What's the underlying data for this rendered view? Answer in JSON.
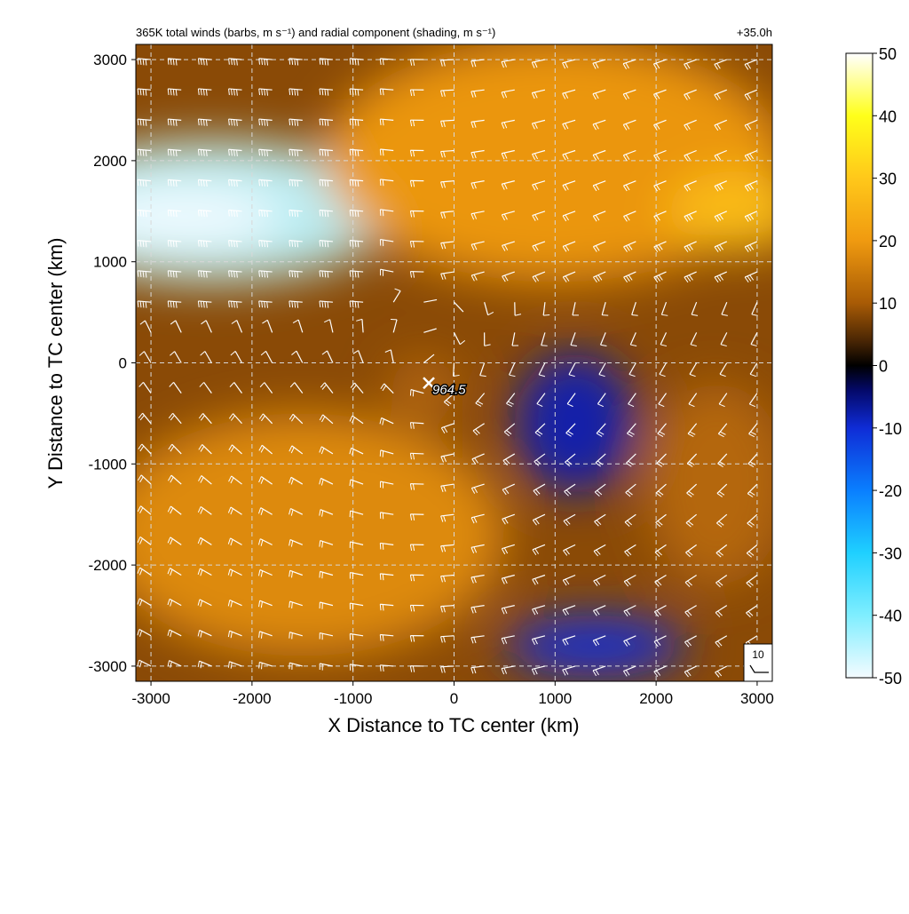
{
  "chart_data": {
    "type": "heatmap",
    "title": "365K total winds (barbs, m s⁻¹) and radial component (shading, m s⁻¹)",
    "forecast_hour": "+35.0h",
    "xlabel": "X Distance to TC center (km)",
    "ylabel": "Y Distance to TC center (km)",
    "xlim": [
      -3150,
      3150
    ],
    "ylim": [
      -3150,
      3150
    ],
    "x_ticks": [
      -3000,
      -2000,
      -1000,
      0,
      1000,
      2000,
      3000
    ],
    "y_ticks": [
      -3000,
      -2000,
      -1000,
      0,
      1000,
      2000,
      3000
    ],
    "grid": true,
    "grid_style": "dashed",
    "center_marker": {
      "x": -250,
      "y": -200,
      "label": "964.5"
    },
    "barb_reference": {
      "label": "10",
      "speed": 10,
      "placement": "bottom-right"
    },
    "colorbar": {
      "min": -50,
      "max": 50,
      "ticks": [
        50,
        40,
        30,
        20,
        10,
        0,
        -10,
        -20,
        -30,
        -40,
        -50
      ],
      "placement": "right",
      "stops": [
        {
          "value": -50,
          "color": "#f4fbff"
        },
        {
          "value": -40,
          "color": "#7feeff"
        },
        {
          "value": -30,
          "color": "#1fd0ff"
        },
        {
          "value": -20,
          "color": "#0a7fff"
        },
        {
          "value": -10,
          "color": "#0f2cd6"
        },
        {
          "value": -4,
          "color": "#04096a"
        },
        {
          "value": 0,
          "color": "#000000"
        },
        {
          "value": 4,
          "color": "#4a2604"
        },
        {
          "value": 10,
          "color": "#a85b05"
        },
        {
          "value": 20,
          "color": "#f09a10"
        },
        {
          "value": 30,
          "color": "#ffc81a"
        },
        {
          "value": 40,
          "color": "#ffff1a"
        },
        {
          "value": 50,
          "color": "#ffffff"
        }
      ]
    },
    "field_regions": [
      {
        "desc": "northwest inflow",
        "x": -2400,
        "y": 1500,
        "rx": 1800,
        "ry": 700,
        "value": -45
      },
      {
        "desc": "northwest inflow core",
        "x": -2700,
        "y": 1450,
        "rx": 1000,
        "ry": 300,
        "value": -50
      },
      {
        "desc": "north outflow",
        "x": 1000,
        "y": 2000,
        "rx": 2300,
        "ry": 1200,
        "value": 20
      },
      {
        "desc": "northeast outflow core",
        "x": 2800,
        "y": 1500,
        "rx": 700,
        "ry": 400,
        "value": 28
      },
      {
        "desc": "southwest outflow",
        "x": -1500,
        "y": -1700,
        "rx": 2000,
        "ry": 1200,
        "value": 18
      },
      {
        "desc": "east inflow band",
        "x": 1200,
        "y": -600,
        "rx": 600,
        "ry": 700,
        "value": -8
      },
      {
        "desc": "southeast inflow",
        "x": 1400,
        "y": -2800,
        "rx": 900,
        "ry": 300,
        "value": -10
      },
      {
        "desc": "east outflow",
        "x": 2600,
        "y": -1200,
        "rx": 700,
        "ry": 1000,
        "value": 12
      },
      {
        "desc": "vortex ring",
        "x": -300,
        "y": -250,
        "rx": 350,
        "ry": 300,
        "value": 12
      }
    ]
  }
}
